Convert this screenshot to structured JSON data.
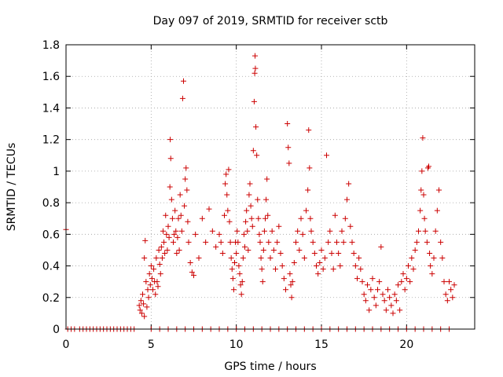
{
  "chart_data": {
    "type": "scatter",
    "title": "Day 097 of 2019, SRMTID for receiver sctb",
    "xlabel": "GPS time / hours",
    "ylabel": "SRMTID / TECUs",
    "xlim": [
      0,
      24
    ],
    "ylim": [
      0,
      1.8
    ],
    "grid": true,
    "marker": "+",
    "color": "#cc0000",
    "x_ticks": [
      0,
      5,
      10,
      15,
      20
    ],
    "x_tick_labels": [
      "0",
      "5",
      "10",
      "15",
      "20"
    ],
    "y_ticks": [
      0,
      0.2,
      0.4,
      0.6,
      0.8,
      1,
      1.2,
      1.4,
      1.6,
      1.8
    ],
    "y_tick_labels": [
      "0",
      "0.2",
      "0.4",
      "0.6",
      "0.8",
      "1",
      "1.2",
      "1.4",
      "1.6",
      "1.8"
    ],
    "series": [
      {
        "name": "SRMTID",
        "points": [
          [
            0.0,
            0.63
          ],
          [
            0.1,
            0.0
          ],
          [
            0.3,
            0.0
          ],
          [
            0.5,
            0.0
          ],
          [
            0.8,
            0.0
          ],
          [
            1.0,
            0.0
          ],
          [
            1.2,
            0.0
          ],
          [
            1.4,
            0.0
          ],
          [
            1.6,
            0.0
          ],
          [
            1.8,
            0.0
          ],
          [
            2.0,
            0.0
          ],
          [
            2.2,
            0.0
          ],
          [
            2.4,
            0.0
          ],
          [
            2.6,
            0.0
          ],
          [
            2.8,
            0.0
          ],
          [
            3.0,
            0.0
          ],
          [
            3.2,
            0.0
          ],
          [
            3.4,
            0.0
          ],
          [
            3.6,
            0.0
          ],
          [
            3.8,
            0.0
          ],
          [
            4.0,
            0.0
          ],
          [
            4.3,
            0.15
          ],
          [
            4.35,
            0.12
          ],
          [
            4.4,
            0.18
          ],
          [
            4.45,
            0.1
          ],
          [
            4.5,
            0.22
          ],
          [
            4.55,
            0.16
          ],
          [
            4.6,
            0.45
          ],
          [
            4.6,
            0.08
          ],
          [
            4.65,
            0.56
          ],
          [
            4.7,
            0.3
          ],
          [
            4.75,
            0.14
          ],
          [
            4.8,
            0.25
          ],
          [
            4.85,
            0.2
          ],
          [
            4.9,
            0.35
          ],
          [
            4.95,
            0.28
          ],
          [
            5.0,
            0.4
          ],
          [
            5.05,
            0.32
          ],
          [
            5.1,
            0.25
          ],
          [
            5.15,
            0.38
          ],
          [
            5.2,
            0.3
          ],
          [
            5.25,
            0.22
          ],
          [
            5.3,
            0.45
          ],
          [
            5.35,
            0.3
          ],
          [
            5.4,
            0.27
          ],
          [
            5.45,
            0.5
          ],
          [
            5.5,
            0.41
          ],
          [
            5.55,
            0.35
          ],
          [
            5.6,
            0.52
          ],
          [
            5.65,
            0.45
          ],
          [
            5.7,
            0.62
          ],
          [
            5.75,
            0.55
          ],
          [
            5.8,
            0.48
          ],
          [
            5.85,
            0.72
          ],
          [
            5.9,
            0.6
          ],
          [
            5.95,
            0.5
          ],
          [
            6.0,
            0.65
          ],
          [
            6.05,
            0.58
          ],
          [
            6.1,
            0.9
          ],
          [
            6.12,
            1.2
          ],
          [
            6.15,
            1.08
          ],
          [
            6.2,
            0.82
          ],
          [
            6.25,
            0.7
          ],
          [
            6.3,
            0.55
          ],
          [
            6.35,
            0.6
          ],
          [
            6.4,
            0.75
          ],
          [
            6.45,
            0.62
          ],
          [
            6.5,
            0.48
          ],
          [
            6.55,
            0.58
          ],
          [
            6.6,
            0.7
          ],
          [
            6.65,
            0.5
          ],
          [
            6.7,
            0.85
          ],
          [
            6.75,
            0.72
          ],
          [
            6.8,
            0.62
          ],
          [
            6.85,
            1.46
          ],
          [
            6.9,
            1.57
          ],
          [
            6.95,
            0.78
          ],
          [
            7.0,
            0.95
          ],
          [
            7.05,
            1.02
          ],
          [
            7.1,
            0.88
          ],
          [
            7.15,
            0.68
          ],
          [
            7.2,
            0.55
          ],
          [
            7.3,
            0.42
          ],
          [
            7.4,
            0.36
          ],
          [
            7.5,
            0.34
          ],
          [
            7.6,
            0.6
          ],
          [
            7.8,
            0.45
          ],
          [
            8.0,
            0.7
          ],
          [
            8.2,
            0.55
          ],
          [
            8.4,
            0.76
          ],
          [
            8.6,
            0.62
          ],
          [
            8.8,
            0.52
          ],
          [
            9.0,
            0.6
          ],
          [
            9.1,
            0.55
          ],
          [
            9.2,
            0.48
          ],
          [
            9.3,
            0.72
          ],
          [
            9.35,
            0.92
          ],
          [
            9.4,
            0.98
          ],
          [
            9.45,
            0.85
          ],
          [
            9.5,
            0.75
          ],
          [
            9.55,
            1.01
          ],
          [
            9.6,
            0.68
          ],
          [
            9.65,
            0.55
          ],
          [
            9.7,
            0.45
          ],
          [
            9.75,
            0.38
          ],
          [
            9.8,
            0.32
          ],
          [
            9.85,
            0.25
          ],
          [
            9.9,
            0.42
          ],
          [
            9.95,
            0.55
          ],
          [
            10.0,
            0.48
          ],
          [
            10.05,
            0.62
          ],
          [
            10.1,
            0.55
          ],
          [
            10.15,
            0.4
          ],
          [
            10.2,
            0.35
          ],
          [
            10.25,
            0.28
          ],
          [
            10.3,
            0.22
          ],
          [
            10.35,
            0.3
          ],
          [
            10.4,
            0.45
          ],
          [
            10.45,
            0.6
          ],
          [
            10.5,
            0.52
          ],
          [
            10.55,
            0.68
          ],
          [
            10.6,
            0.75
          ],
          [
            10.65,
            0.62
          ],
          [
            10.7,
            0.5
          ],
          [
            10.75,
            0.85
          ],
          [
            10.8,
            0.92
          ],
          [
            10.85,
            0.78
          ],
          [
            10.9,
            0.7
          ],
          [
            10.95,
            0.65
          ],
          [
            11.0,
            1.13
          ],
          [
            11.05,
            1.44
          ],
          [
            11.08,
            1.62
          ],
          [
            11.1,
            1.73
          ],
          [
            11.12,
            1.65
          ],
          [
            11.15,
            1.28
          ],
          [
            11.2,
            1.1
          ],
          [
            11.25,
            0.82
          ],
          [
            11.3,
            0.7
          ],
          [
            11.35,
            0.6
          ],
          [
            11.4,
            0.55
          ],
          [
            11.45,
            0.45
          ],
          [
            11.5,
            0.38
          ],
          [
            11.55,
            0.3
          ],
          [
            11.6,
            0.5
          ],
          [
            11.65,
            0.62
          ],
          [
            11.7,
            0.7
          ],
          [
            11.75,
            0.82
          ],
          [
            11.8,
            0.95
          ],
          [
            11.85,
            0.72
          ],
          [
            11.9,
            0.55
          ],
          [
            12.0,
            0.45
          ],
          [
            12.1,
            0.62
          ],
          [
            12.2,
            0.5
          ],
          [
            12.3,
            0.38
          ],
          [
            12.4,
            0.55
          ],
          [
            12.5,
            0.65
          ],
          [
            12.6,
            0.48
          ],
          [
            12.7,
            0.4
          ],
          [
            12.8,
            0.32
          ],
          [
            12.9,
            0.25
          ],
          [
            13.0,
            1.3
          ],
          [
            13.05,
            1.15
          ],
          [
            13.1,
            1.05
          ],
          [
            13.15,
            0.35
          ],
          [
            13.2,
            0.28
          ],
          [
            13.25,
            0.2
          ],
          [
            13.3,
            0.3
          ],
          [
            13.4,
            0.42
          ],
          [
            13.5,
            0.55
          ],
          [
            13.6,
            0.62
          ],
          [
            13.7,
            0.5
          ],
          [
            13.8,
            0.7
          ],
          [
            13.9,
            0.6
          ],
          [
            14.0,
            0.45
          ],
          [
            14.1,
            0.75
          ],
          [
            14.2,
            0.88
          ],
          [
            14.25,
            1.26
          ],
          [
            14.3,
            1.02
          ],
          [
            14.35,
            0.7
          ],
          [
            14.4,
            0.62
          ],
          [
            14.5,
            0.55
          ],
          [
            14.6,
            0.48
          ],
          [
            14.7,
            0.4
          ],
          [
            14.8,
            0.35
          ],
          [
            14.9,
            0.42
          ],
          [
            15.0,
            0.5
          ],
          [
            15.1,
            0.38
          ],
          [
            15.2,
            0.45
          ],
          [
            15.3,
            1.1
          ],
          [
            15.4,
            0.55
          ],
          [
            15.5,
            0.62
          ],
          [
            15.6,
            0.48
          ],
          [
            15.7,
            0.38
          ],
          [
            15.8,
            0.72
          ],
          [
            15.9,
            0.55
          ],
          [
            16.0,
            0.48
          ],
          [
            16.1,
            0.4
          ],
          [
            16.2,
            0.62
          ],
          [
            16.3,
            0.55
          ],
          [
            16.4,
            0.7
          ],
          [
            16.5,
            0.82
          ],
          [
            16.6,
            0.92
          ],
          [
            16.7,
            0.65
          ],
          [
            16.8,
            0.55
          ],
          [
            16.9,
            0.48
          ],
          [
            17.0,
            0.4
          ],
          [
            17.1,
            0.32
          ],
          [
            17.2,
            0.45
          ],
          [
            17.3,
            0.38
          ],
          [
            17.4,
            0.3
          ],
          [
            17.5,
            0.22
          ],
          [
            17.6,
            0.18
          ],
          [
            17.7,
            0.28
          ],
          [
            17.8,
            0.12
          ],
          [
            17.9,
            0.25
          ],
          [
            18.0,
            0.32
          ],
          [
            18.1,
            0.2
          ],
          [
            18.2,
            0.15
          ],
          [
            18.3,
            0.25
          ],
          [
            18.4,
            0.3
          ],
          [
            18.5,
            0.52
          ],
          [
            18.6,
            0.22
          ],
          [
            18.7,
            0.18
          ],
          [
            18.8,
            0.12
          ],
          [
            18.9,
            0.25
          ],
          [
            19.0,
            0.2
          ],
          [
            19.1,
            0.15
          ],
          [
            19.2,
            0.1
          ],
          [
            19.3,
            0.22
          ],
          [
            19.4,
            0.18
          ],
          [
            19.5,
            0.28
          ],
          [
            19.6,
            0.12
          ],
          [
            19.7,
            0.3
          ],
          [
            19.8,
            0.35
          ],
          [
            19.9,
            0.25
          ],
          [
            20.0,
            0.32
          ],
          [
            20.1,
            0.4
          ],
          [
            20.2,
            0.3
          ],
          [
            20.3,
            0.45
          ],
          [
            20.4,
            0.38
          ],
          [
            20.5,
            0.5
          ],
          [
            20.6,
            0.55
          ],
          [
            20.7,
            0.62
          ],
          [
            20.8,
            0.75
          ],
          [
            20.85,
            0.88
          ],
          [
            20.9,
            1.0
          ],
          [
            20.95,
            1.21
          ],
          [
            21.0,
            0.85
          ],
          [
            21.05,
            0.7
          ],
          [
            21.1,
            0.62
          ],
          [
            21.2,
            0.55
          ],
          [
            21.25,
            1.02
          ],
          [
            21.3,
            1.03
          ],
          [
            21.35,
            0.48
          ],
          [
            21.4,
            0.4
          ],
          [
            21.5,
            0.35
          ],
          [
            21.6,
            0.45
          ],
          [
            21.7,
            0.62
          ],
          [
            21.8,
            0.75
          ],
          [
            21.9,
            0.88
          ],
          [
            22.0,
            0.55
          ],
          [
            22.1,
            0.45
          ],
          [
            22.2,
            0.3
          ],
          [
            22.3,
            0.22
          ],
          [
            22.4,
            0.18
          ],
          [
            22.5,
            0.3
          ],
          [
            22.6,
            0.25
          ],
          [
            22.7,
            0.2
          ],
          [
            22.8,
            0.28
          ],
          [
            5.0,
            0.0
          ],
          [
            5.5,
            0.0
          ],
          [
            6.0,
            0.0
          ],
          [
            6.5,
            0.0
          ],
          [
            7.0,
            0.0
          ],
          [
            7.5,
            0.0
          ],
          [
            8.0,
            0.0
          ],
          [
            8.5,
            0.0
          ],
          [
            9.0,
            0.0
          ],
          [
            9.5,
            0.0
          ],
          [
            10.0,
            0.0
          ],
          [
            10.5,
            0.0
          ],
          [
            11.0,
            0.0
          ],
          [
            11.5,
            0.0
          ],
          [
            12.0,
            0.0
          ],
          [
            12.5,
            0.0
          ],
          [
            13.0,
            0.0
          ],
          [
            13.5,
            0.0
          ],
          [
            14.0,
            0.0
          ],
          [
            14.5,
            0.0
          ],
          [
            15.0,
            0.0
          ],
          [
            15.5,
            0.0
          ],
          [
            16.0,
            0.0
          ],
          [
            16.5,
            0.0
          ],
          [
            17.0,
            0.0
          ],
          [
            17.5,
            0.0
          ],
          [
            18.0,
            0.0
          ],
          [
            18.5,
            0.0
          ],
          [
            19.0,
            0.0
          ],
          [
            19.5,
            0.0
          ],
          [
            20.0,
            0.0
          ],
          [
            20.5,
            0.0
          ],
          [
            21.0,
            0.0
          ],
          [
            21.5,
            0.0
          ],
          [
            22.0,
            0.0
          ],
          [
            22.5,
            0.0
          ]
        ]
      }
    ]
  }
}
